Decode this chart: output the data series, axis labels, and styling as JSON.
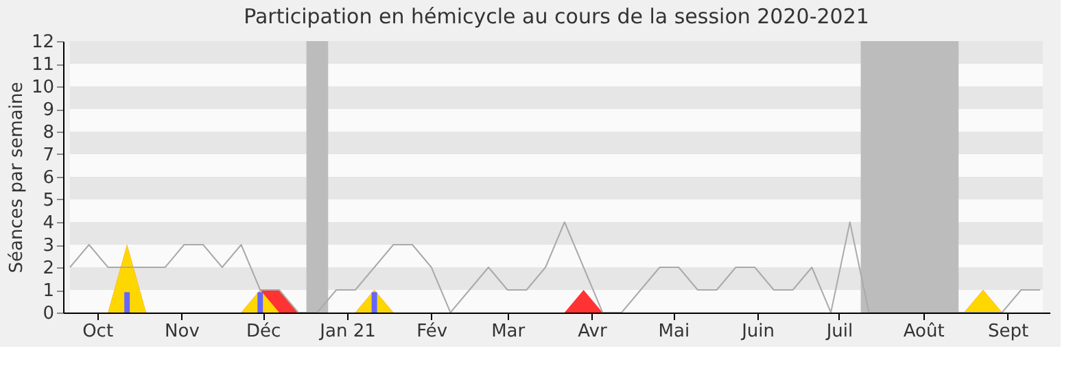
{
  "chart_data": {
    "type": "area",
    "title": "Participation en hémicycle au cours de la session 2020-2021",
    "ylabel": "Séances par semaine",
    "x": [
      "2020-09-21",
      "2020-09-28",
      "2020-10-05",
      "2020-10-12",
      "2020-10-19",
      "2020-10-26",
      "2020-11-02",
      "2020-11-09",
      "2020-11-16",
      "2020-11-23",
      "2020-11-30",
      "2020-12-07",
      "2020-12-14",
      "2020-12-21",
      "2020-12-28",
      "2021-01-04",
      "2021-01-11",
      "2021-01-18",
      "2021-01-25",
      "2021-02-01",
      "2021-02-08",
      "2021-02-15",
      "2021-02-22",
      "2021-03-01",
      "2021-03-08",
      "2021-03-15",
      "2021-03-22",
      "2021-03-29",
      "2021-04-05",
      "2021-04-12",
      "2021-04-19",
      "2021-04-26",
      "2021-05-03",
      "2021-05-10",
      "2021-05-17",
      "2021-05-24",
      "2021-05-31",
      "2021-06-07",
      "2021-06-14",
      "2021-06-21",
      "2021-06-28",
      "2021-07-05",
      "2021-07-12",
      "2021-07-19",
      "2021-07-26",
      "2021-08-02",
      "2021-08-09",
      "2021-08-16",
      "2021-08-23",
      "2021-08-30",
      "2021-09-06",
      "2021-09-13"
    ],
    "series": [
      {
        "color": "#ff3333",
        "values": [
          0,
          0,
          0,
          3,
          0,
          0,
          0,
          0,
          0,
          0,
          1,
          1,
          0,
          0,
          0,
          0,
          1,
          0,
          0,
          0,
          0,
          0,
          0,
          0,
          0,
          0,
          0,
          1,
          0,
          0,
          0,
          0,
          0,
          0,
          0,
          0,
          0,
          0,
          0,
          0,
          0,
          0,
          0,
          0,
          0,
          0,
          0,
          0,
          1,
          0,
          0,
          0
        ]
      },
      {
        "color": "#ffd700",
        "values": [
          null,
          null,
          0,
          3,
          0,
          null,
          null,
          null,
          null,
          0,
          1,
          0,
          null,
          null,
          null,
          0,
          1,
          0,
          null,
          null,
          null,
          null,
          null,
          null,
          null,
          null,
          null,
          null,
          null,
          null,
          null,
          null,
          null,
          null,
          null,
          null,
          null,
          null,
          null,
          null,
          null,
          null,
          null,
          null,
          null,
          null,
          null,
          0,
          1,
          0,
          null,
          null
        ]
      },
      {
        "type": "line",
        "color": "#aaaaaa",
        "values": [
          2,
          3,
          2,
          2,
          2,
          2,
          3,
          3,
          2,
          3,
          1,
          1,
          0,
          0,
          1,
          1,
          2,
          3,
          3,
          2,
          0,
          1,
          2,
          1,
          1,
          2,
          4,
          2,
          0,
          0,
          1,
          2,
          2,
          1,
          1,
          2,
          2,
          1,
          1,
          2,
          0,
          4,
          0,
          0,
          0,
          0,
          0,
          0,
          0,
          0,
          1,
          1
        ]
      },
      {
        "type": "bar",
        "color": "#6666ff",
        "x": [
          "2020-10-12",
          "2020-11-30",
          "2021-01-11"
        ],
        "values": [
          0.9,
          0.9,
          0.9
        ]
      }
    ],
    "xlim": [
      "2020-09-21",
      "2021-09-14"
    ],
    "ylim": [
      0,
      12
    ],
    "yticks": [
      0,
      1,
      2,
      3,
      4,
      5,
      6,
      7,
      8,
      9,
      10,
      11,
      12
    ],
    "xticks": [
      {
        "value": "2020-10-01",
        "label": "Oct"
      },
      {
        "value": "2020-11-01",
        "label": "Nov"
      },
      {
        "value": "2020-12-01",
        "label": "Déc"
      },
      {
        "value": "2021-01-01",
        "label": "Jan 21"
      },
      {
        "value": "2021-02-01",
        "label": "Fév"
      },
      {
        "value": "2021-03-01",
        "label": "Mar"
      },
      {
        "value": "2021-04-01",
        "label": "Avr"
      },
      {
        "value": "2021-05-01",
        "label": "Mai"
      },
      {
        "value": "2021-06-01",
        "label": "Juin"
      },
      {
        "value": "2021-07-01",
        "label": "Juil"
      },
      {
        "value": "2021-08-01",
        "label": "Août"
      },
      {
        "value": "2021-09-01",
        "label": "Sept"
      }
    ],
    "bands": [
      {
        "axis": "y",
        "from": 1,
        "to": 2,
        "color": "#e6e6e6"
      },
      {
        "axis": "y",
        "from": 3,
        "to": 4,
        "color": "#e6e6e6"
      },
      {
        "axis": "y",
        "from": 5,
        "to": 6,
        "color": "#e6e6e6"
      },
      {
        "axis": "y",
        "from": 7,
        "to": 8,
        "color": "#e6e6e6"
      },
      {
        "axis": "y",
        "from": 9,
        "to": 10,
        "color": "#e6e6e6"
      },
      {
        "axis": "y",
        "from": 11,
        "to": 12,
        "color": "#e6e6e6"
      },
      {
        "axis": "x",
        "from": "2020-12-17",
        "to": "2020-12-25",
        "color": "#bcbcbc"
      },
      {
        "axis": "x",
        "from": "2021-07-09",
        "to": "2021-08-14",
        "color": "#bcbcbc"
      }
    ],
    "grid": false
  }
}
